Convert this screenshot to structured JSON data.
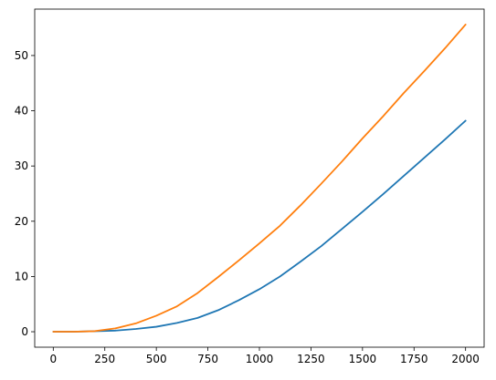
{
  "chart_data": {
    "type": "line",
    "title": "",
    "xlabel": "",
    "ylabel": "",
    "xlim": [
      -90,
      2090
    ],
    "ylim": [
      -2.8,
      58.4
    ],
    "x_ticks": [
      0,
      250,
      500,
      750,
      1000,
      1250,
      1500,
      1750,
      2000
    ],
    "x_tick_labels": [
      "0",
      "250",
      "500",
      "750",
      "1000",
      "1250",
      "1500",
      "1750",
      "2000"
    ],
    "y_ticks": [
      0,
      10,
      20,
      30,
      40,
      50
    ],
    "y_tick_labels": [
      "0",
      "10",
      "20",
      "30",
      "40",
      "50"
    ],
    "grid": false,
    "legend": "none",
    "series": [
      {
        "color": "#1f77b4",
        "x": [
          0,
          100,
          200,
          300,
          400,
          500,
          600,
          700,
          800,
          900,
          1000,
          1100,
          1200,
          1300,
          1400,
          1500,
          1600,
          1700,
          1800,
          1900,
          2000
        ],
        "y": [
          0,
          0,
          0.1,
          0.2,
          0.5,
          0.9,
          1.6,
          2.5,
          3.9,
          5.7,
          7.7,
          10.0,
          12.7,
          15.5,
          18.6,
          21.7,
          24.9,
          28.2,
          31.5,
          34.8,
          38.2
        ]
      },
      {
        "color": "#ff7f0e",
        "x": [
          0,
          100,
          200,
          300,
          400,
          500,
          600,
          700,
          800,
          900,
          1000,
          1100,
          1200,
          1300,
          1400,
          1500,
          1600,
          1700,
          1800,
          1900,
          2000
        ],
        "y": [
          0,
          0,
          0.1,
          0.6,
          1.5,
          2.9,
          4.6,
          7.0,
          9.9,
          12.9,
          16.0,
          19.2,
          22.9,
          26.8,
          30.8,
          35.0,
          39.0,
          43.2,
          47.2,
          51.3,
          55.6
        ]
      }
    ]
  }
}
